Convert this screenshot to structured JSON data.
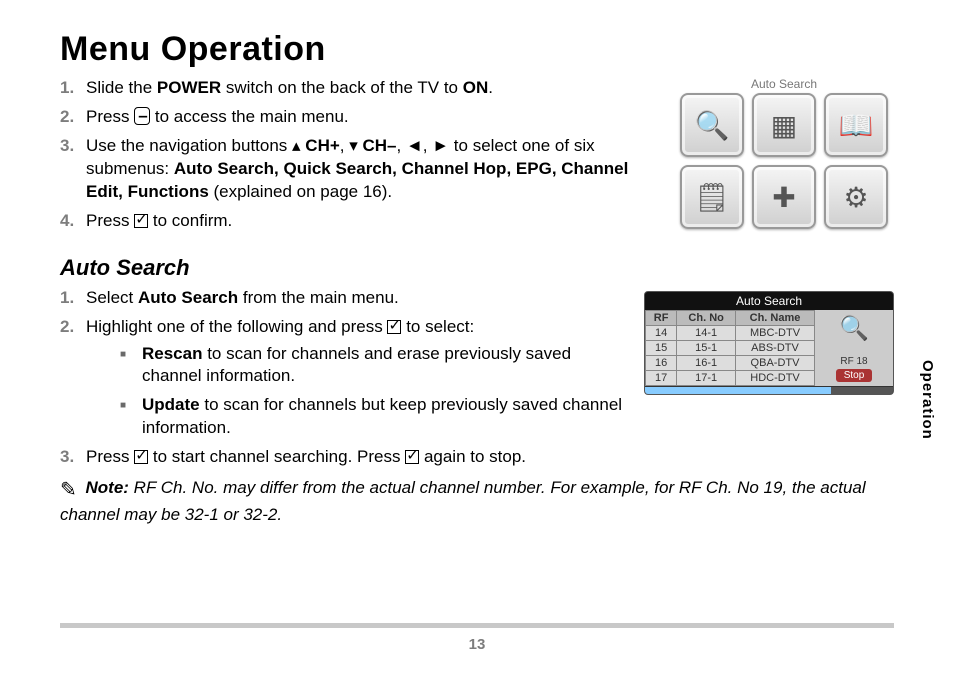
{
  "page_title": "Menu Operation",
  "section_tab": "Operation",
  "page_number": "13",
  "steps_main": [
    {
      "pre": "Slide the ",
      "bold1": "POWER",
      "mid": " switch on the back of the TV to ",
      "bold2": "ON",
      "post": "."
    },
    {
      "pre": "Press ",
      "glyph": "menu",
      "post": " to access the main menu."
    },
    {
      "pre": "Use the navigation buttons ",
      "nav": true,
      "post_nav": " to select one of six submenus: ",
      "submenus": "Auto Search, Quick Search, Channel Hop, EPG, Channel Edit, Functions",
      "tail": " (explained on page 16)."
    },
    {
      "pre": "Press ",
      "glyph": "check",
      "post": " to confirm."
    }
  ],
  "nav_labels": {
    "chp": "CH+",
    "chm": "CH–"
  },
  "auto_search_heading": "Auto Search",
  "menu_illus_label": "Auto Search",
  "menu_icons": [
    "🔍",
    "▦",
    "📖",
    "🗒",
    "✚",
    "⚙"
  ],
  "steps_auto": [
    {
      "pre": "Select ",
      "bold1": "Auto Search",
      "post": " from the main menu."
    },
    {
      "pre": "Highlight one of the following and press ",
      "glyph": "check",
      "post": " to select:"
    }
  ],
  "bullets": [
    {
      "bold": "Rescan",
      "text": " to scan for channels and erase previously saved channel information."
    },
    {
      "bold": "Update",
      "text": " to scan for channels but keep previously saved channel information."
    }
  ],
  "step_auto_3": {
    "pre": "Press ",
    "glyph1": "check",
    "mid": " to start channel searching. Press ",
    "glyph2": "check",
    "post": " again to stop."
  },
  "table": {
    "title": "Auto Search",
    "headers": [
      "RF",
      "Ch. No",
      "Ch. Name"
    ],
    "rows": [
      [
        "14",
        "14-1",
        "MBC-DTV"
      ],
      [
        "15",
        "15-1",
        "ABS-DTV"
      ],
      [
        "16",
        "16-1",
        "QBA-DTV"
      ],
      [
        "17",
        "17-1",
        "HDC-DTV"
      ]
    ],
    "rf_label": "RF 18",
    "stop_label": "Stop"
  },
  "note": {
    "label": "Note:",
    "text": " RF Ch. No. may differ from the actual channel number. For example, for RF Ch. No 19, the actual channel may be 32-1 or 32-2."
  }
}
